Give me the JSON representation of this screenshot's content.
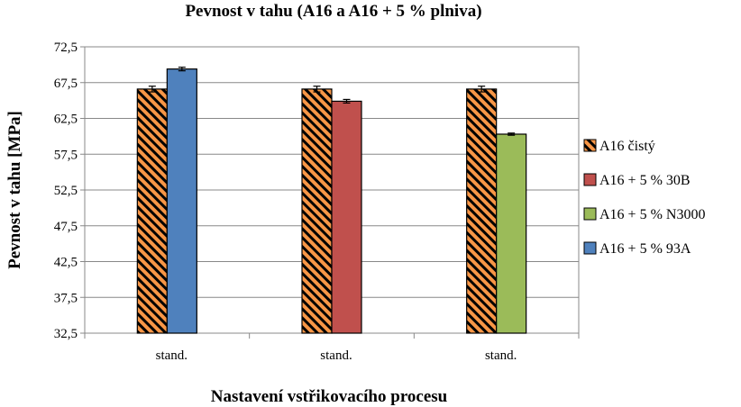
{
  "chart_data": {
    "type": "bar",
    "title": "Pevnost v tahu (A16 a A16 + 5 % plniva)",
    "xlabel": "Nastavení vstřikovacího procesu",
    "ylabel": "Pevnost v tahu [MPa]",
    "ylim": [
      32.5,
      72.5
    ],
    "yticks": [
      "32,5",
      "37,5",
      "42,5",
      "47,5",
      "52,5",
      "57,5",
      "62,5",
      "67,5",
      "72,5"
    ],
    "categories": [
      "stand.",
      "stand.",
      "stand."
    ],
    "grid": true,
    "legend_position": "right",
    "groups": [
      {
        "category": "stand.",
        "bars": [
          {
            "series": "A16 čistý",
            "value": 66.6,
            "error": 0.4
          },
          {
            "series": "A16 + 5 % 93A",
            "value": 69.4,
            "error": 0.25
          }
        ]
      },
      {
        "category": "stand.",
        "bars": [
          {
            "series": "A16 čistý",
            "value": 66.6,
            "error": 0.4
          },
          {
            "series": "A16 + 5 % 30B",
            "value": 64.9,
            "error": 0.25
          }
        ]
      },
      {
        "category": "stand.",
        "bars": [
          {
            "series": "A16 čistý",
            "value": 66.6,
            "error": 0.4
          },
          {
            "series": "A16 + 5 % N3000",
            "value": 60.3,
            "error": 0.15
          }
        ]
      }
    ],
    "series": [
      {
        "name": "A16 čistý",
        "color": "#f79646",
        "pattern": "hatched"
      },
      {
        "name": "A16 + 5 % 30B",
        "color": "#c0504d",
        "pattern": "solid"
      },
      {
        "name": "A16 + 5 % N3000",
        "color": "#9bbb59",
        "pattern": "solid"
      },
      {
        "name": "A16 + 5 % 93A",
        "color": "#4f81bd",
        "pattern": "solid"
      }
    ]
  }
}
